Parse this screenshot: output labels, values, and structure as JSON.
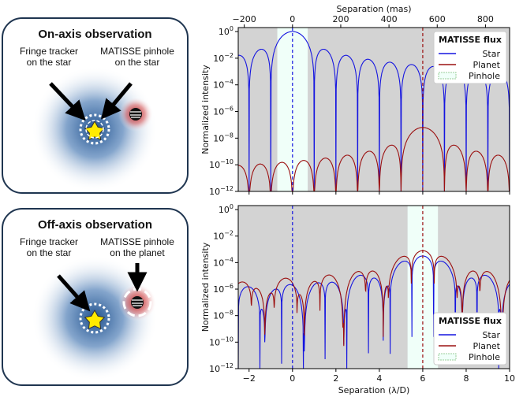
{
  "panels": [
    {
      "title": "On-axis observation",
      "label_left": [
        "Fringe tracker",
        "on the star"
      ],
      "label_right": [
        "MATISSE pinhole",
        "on the star"
      ]
    },
    {
      "title": "Off-axis observation",
      "label_left": [
        "Fringe tracker",
        "on the star"
      ],
      "label_right": [
        "MATISSE pinhole",
        "on the planet"
      ]
    }
  ],
  "colors": {
    "star": "#1515e0",
    "planet": "#9b1010",
    "pinhole_fill": "#f0fff9",
    "axes_bg": "#d3d3d3"
  },
  "chart_data": [
    {
      "type": "line",
      "yscale": "log",
      "top_xlabel": "Separation (mas)",
      "top_xticks": [
        -200,
        0,
        200,
        400,
        600,
        800
      ],
      "ylabel": "Normalized intensity",
      "yticks": [
        "10^0",
        "10^-2",
        "10^-4",
        "10^-6",
        "10^-8",
        "10^-10",
        "10^-12"
      ],
      "xlim": [
        -2.5,
        10
      ],
      "ylim_exp": [
        -12,
        0.3
      ],
      "pinhole": [
        -0.7,
        0.7
      ],
      "star_position": 0,
      "planet_position": 6,
      "legend": {
        "title": "MATISSE flux",
        "entries": [
          "Star",
          "Planet",
          "Pinhole"
        ],
        "placement": "top-right"
      },
      "series": [
        {
          "name": "Star",
          "center": 0,
          "peak_exp": 0
        },
        {
          "name": "Planet",
          "center": 6,
          "peak_exp": -7.2
        }
      ]
    },
    {
      "type": "line",
      "yscale": "log",
      "xlabel": "Separation (λ/D)",
      "xticks": [
        -2,
        0,
        2,
        4,
        6,
        8,
        10
      ],
      "ylabel": "Normalized intensity",
      "yticks": [
        "10^0",
        "10^-2",
        "10^-4",
        "10^-6",
        "10^-8",
        "10^-10",
        "10^-12"
      ],
      "xlim": [
        -2.5,
        10
      ],
      "ylim_exp": [
        -12,
        0.3
      ],
      "pinhole": [
        5.3,
        6.7
      ],
      "star_position": 0,
      "planet_position": 6,
      "legend": {
        "title": "MATISSE flux",
        "entries": [
          "Star",
          "Planet",
          "Pinhole"
        ],
        "placement": "bottom-right"
      },
      "series": [
        {
          "name": "Star",
          "center": 6,
          "peak_exp": -3.5
        },
        {
          "name": "Planet",
          "center": 6,
          "peak_exp": -3.1
        }
      ]
    }
  ]
}
